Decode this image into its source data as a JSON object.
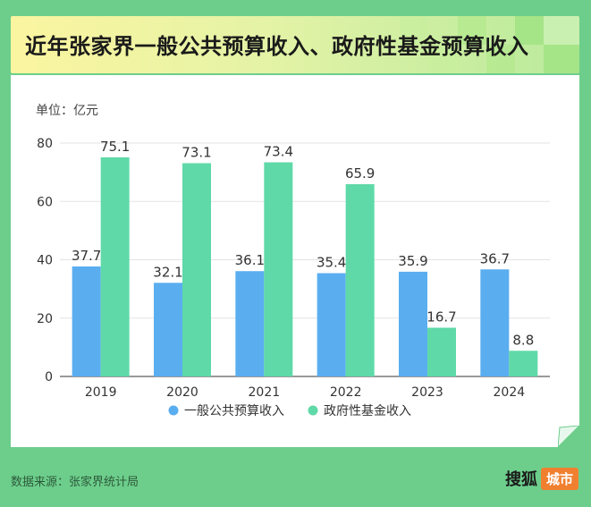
{
  "title": "近年张家界一般公共预算收入、政府性基金预算收入",
  "source": "数据来源：张家界统计局",
  "brand": {
    "name": "搜狐",
    "tag": "城市"
  },
  "colors": {
    "series1": "#5aaef0",
    "series2": "#5fd9a8",
    "bg": "#6dce8c"
  },
  "chart_data": {
    "type": "bar",
    "unit_label": "单位：亿元",
    "categories": [
      "2019",
      "2020",
      "2021",
      "2022",
      "2023",
      "2024"
    ],
    "series": [
      {
        "name": "一般公共预算收入",
        "values": [
          37.7,
          32.1,
          36.1,
          35.4,
          35.9,
          36.7
        ],
        "labels": [
          "37.7",
          "32.1",
          "36.1",
          "35.4",
          "35.9",
          "36.7"
        ]
      },
      {
        "name": "政府性基金收入",
        "values": [
          75.1,
          73.1,
          73.4,
          65.9,
          16.7,
          8.8
        ],
        "labels": [
          "75.1",
          "73.1",
          "73.4",
          "65.9",
          "16.7",
          "8.8"
        ]
      }
    ],
    "yticks": [
      "0",
      "20",
      "40",
      "60",
      "80"
    ],
    "ylim": [
      0,
      80
    ],
    "grid": true,
    "legend_position": "bottom"
  }
}
